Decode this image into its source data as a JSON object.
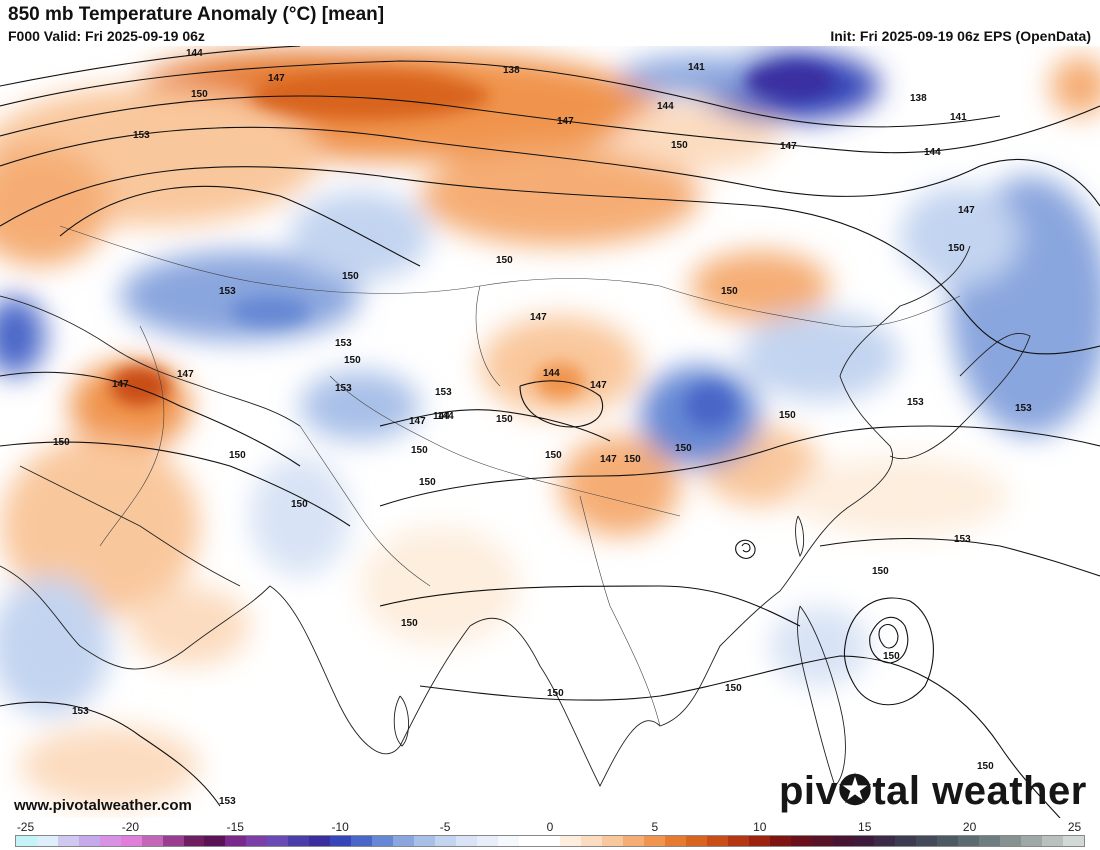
{
  "header": {
    "title": "850 mb Temperature Anomaly (°C) [mean]",
    "valid": "F000 Valid: Fri 2025-09-19 06z",
    "init": "Init: Fri 2025-09-19 06z EPS (OpenData)"
  },
  "footer": {
    "website": "www.pivotalweather.com",
    "logo_text_before": "piv",
    "logo_text_after": "tal weather"
  },
  "legend": {
    "ticks": [
      "-25",
      "-20",
      "-15",
      "-10",
      "-5",
      "0",
      "5",
      "10",
      "15",
      "20",
      "25"
    ],
    "min": -25,
    "max": 26,
    "colors": [
      "#c4f4f8",
      "#dceffa",
      "#cfc9f1",
      "#c6a9ea",
      "#d991e6",
      "#e07fd9",
      "#c466b8",
      "#9a3c8f",
      "#6d1f60",
      "#5a1456",
      "#7a2a8c",
      "#7c3fa8",
      "#6a4bb6",
      "#4c3ea8",
      "#3b2fa0",
      "#3547b8",
      "#4a66c8",
      "#6688d4",
      "#8aa6de",
      "#a8c0e8",
      "#c3d4f0",
      "#d8e3f5",
      "#e8eef9",
      "#f5f8fc",
      "#ffffff",
      "#ffffff",
      "#fdeede",
      "#fcdcc0",
      "#f9c79c",
      "#f5ad74",
      "#f0944e",
      "#e57a30",
      "#d8641f",
      "#c94d17",
      "#b23712",
      "#9b2310",
      "#7f1512",
      "#68111c",
      "#571327",
      "#471533",
      "#3e1a3d",
      "#3c2a48",
      "#3d3b52",
      "#434b5a",
      "#4d5a63",
      "#5b6b70",
      "#6d7d80",
      "#859291",
      "#9ea9a7",
      "#b9c1bf",
      "#d2d8d6"
    ]
  },
  "contours": [
    "144",
    "147",
    "150",
    "153",
    "138",
    "141",
    "144",
    "147",
    "150",
    "138",
    "141",
    "147",
    "144",
    "147",
    "150",
    "150",
    "147",
    "153",
    "150",
    "150",
    "153",
    "153",
    "150",
    "147",
    "147",
    "150",
    "150",
    "150",
    "153",
    "144",
    "147",
    "144",
    "144",
    "147",
    "150",
    "150",
    "150",
    "150",
    "153",
    "153",
    "150",
    "150",
    "147",
    "150",
    "153",
    "150",
    "150",
    "150",
    "150",
    "150",
    "150",
    "153",
    "153"
  ],
  "icons": {
    "logo_dot": "pivotal-weather-dot-icon"
  }
}
